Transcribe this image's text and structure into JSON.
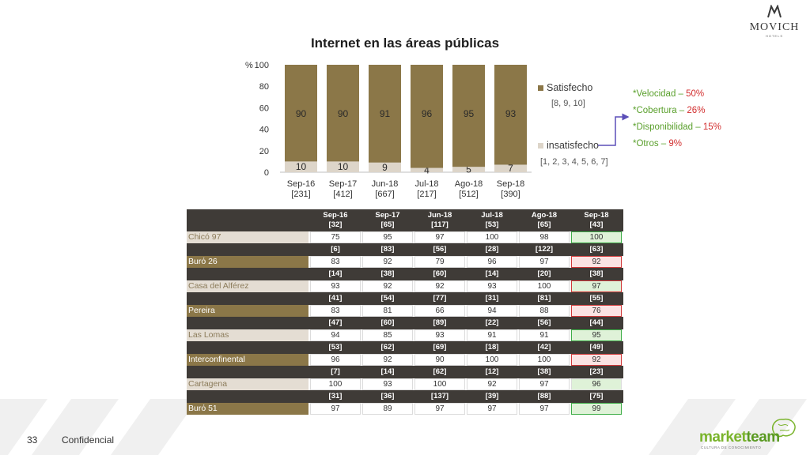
{
  "header": {
    "brand": "MOVICH",
    "brand_sub": "HOTELS"
  },
  "chart_data": {
    "type": "bar",
    "stacked": true,
    "title": "Internet en las áreas públicas",
    "ylabel": "%",
    "ylim": [
      0,
      100
    ],
    "yticks": [
      "0",
      "20",
      "40",
      "60",
      "80",
      "100"
    ],
    "categories": [
      "Sep-16",
      "Sep-17",
      "Jun-18",
      "Jul-18",
      "Ago-18",
      "Sep-18"
    ],
    "bases": [
      "[231]",
      "[412]",
      "[667]",
      "[217]",
      "[512]",
      "[390]"
    ],
    "series": [
      {
        "name": "insatisfecho",
        "range": "[1, 2, 3, 4, 5, 6, 7]",
        "color": "#ddd5c9",
        "values": [
          10,
          10,
          9,
          4,
          5,
          7
        ]
      },
      {
        "name": "Satisfecho",
        "range": "[8, 9, 10]",
        "color": "#8b7748",
        "values": [
          90,
          90,
          91,
          96,
          95,
          93
        ]
      }
    ],
    "legend": "right"
  },
  "reasons": [
    {
      "label": "*Velocidad – ",
      "pct": "50%"
    },
    {
      "label": "*Cobertura – ",
      "pct": "26%"
    },
    {
      "label": "*Disponibilidad – ",
      "pct": "15%"
    },
    {
      "label": "*Otros – ",
      "pct": "9%"
    }
  ],
  "table": {
    "periods": [
      "Sep-16",
      "Sep-17",
      "Jun-18",
      "Jul-18",
      "Ago-18",
      "Sep-18"
    ],
    "hotels": [
      {
        "name": "Chicó 97",
        "style": "light",
        "bases": [
          "[32]",
          "[65]",
          "[117]",
          "[53]",
          "[65]",
          "[43]"
        ],
        "values": [
          "75",
          "95",
          "97",
          "100",
          "98",
          "100"
        ],
        "highlight": "green"
      },
      {
        "name": "Burό 26",
        "style": "dark",
        "bases": [
          "[6]",
          "[83]",
          "[56]",
          "[28]",
          "[122]",
          "[63]"
        ],
        "values": [
          "83",
          "92",
          "79",
          "96",
          "97",
          "92"
        ],
        "highlight": "red"
      },
      {
        "name": "Casa del Alférez",
        "style": "light",
        "bases": [
          "[14]",
          "[38]",
          "[60]",
          "[14]",
          "[20]",
          "[38]"
        ],
        "values": [
          "93",
          "92",
          "92",
          "93",
          "100",
          "97"
        ],
        "highlight": "red-green"
      },
      {
        "name": "Pereira",
        "style": "dark",
        "bases": [
          "[41]",
          "[54]",
          "[77]",
          "[31]",
          "[81]",
          "[55]"
        ],
        "values": [
          "83",
          "81",
          "66",
          "94",
          "88",
          "76"
        ],
        "highlight": "red"
      },
      {
        "name": "Las Lomas",
        "style": "light",
        "bases": [
          "[47]",
          "[60]",
          "[89]",
          "[22]",
          "[56]",
          "[44]"
        ],
        "values": [
          "94",
          "85",
          "93",
          "91",
          "91",
          "95"
        ],
        "highlight": "green"
      },
      {
        "name": "Interconfinental",
        "style": "dark",
        "bases": [
          "[53]",
          "[62]",
          "[69]",
          "[18]",
          "[42]",
          "[49]"
        ],
        "values": [
          "96",
          "92",
          "90",
          "100",
          "100",
          "92"
        ],
        "highlight": "red"
      },
      {
        "name": "Cartagena",
        "style": "light",
        "bases": [
          "[7]",
          "[14]",
          "[62]",
          "[12]",
          "[38]",
          "[23]"
        ],
        "values": [
          "100",
          "93",
          "100",
          "92",
          "97",
          "96"
        ],
        "highlight": "green-fill"
      },
      {
        "name": "Burό 51",
        "style": "dark",
        "bases": [
          "[31]",
          "[36]",
          "[137]",
          "[39]",
          "[88]",
          "[75]"
        ],
        "values": [
          "97",
          "89",
          "97",
          "97",
          "97",
          "99"
        ],
        "highlight": "green"
      }
    ]
  },
  "footer": {
    "page": "33",
    "label": "Confidencial",
    "logo": "marketteam",
    "logo_a": "market",
    "logo_b": "team",
    "logo_tag": "CULTURA DE CONOCIMIENTO"
  }
}
